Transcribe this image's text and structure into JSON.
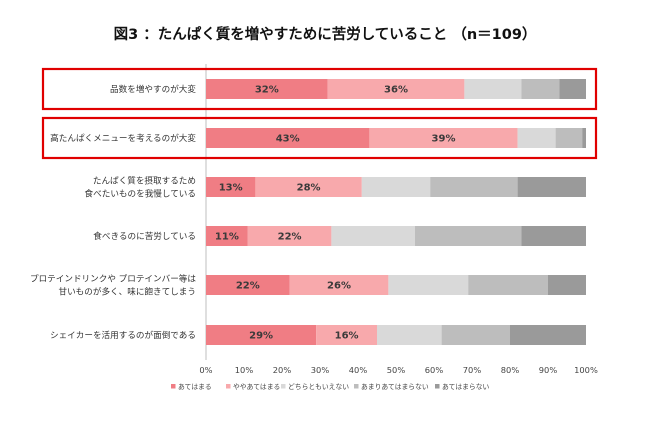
{
  "chart_data": {
    "type": "bar",
    "orientation": "horizontal-stacked-100",
    "title": "図3 ：たんぱく質を増やすために苦労していること （n＝109）",
    "categories": [
      [
        "品数を増やすのが大変"
      ],
      [
        "高たんぱくメニューを考えるのが大変"
      ],
      [
        "たんぱく質を摂取するため",
        "食べたいものを我慢している"
      ],
      [
        "食べきるのに苦労している"
      ],
      [
        "プロテインドリンクや プロテインバー等は",
        "甘いものが多く、味に飽きてしまう"
      ],
      [
        "シェイカーを活用するのが面倒である"
      ]
    ],
    "series": [
      {
        "name": "あてはまる",
        "color": "#f07d84",
        "values": [
          32,
          43,
          13,
          11,
          22,
          29
        ]
      },
      {
        "name": "ややあてはまる",
        "color": "#f8a9ac",
        "values": [
          36,
          39,
          28,
          22,
          26,
          16
        ]
      },
      {
        "name": "どちらともいえない",
        "color": "#d9d9d9",
        "values": [
          15,
          10,
          18,
          22,
          21,
          17
        ]
      },
      {
        "name": "あまりあてはまらない",
        "color": "#bdbdbd",
        "values": [
          10,
          7,
          23,
          28,
          21,
          18
        ]
      },
      {
        "name": "あてはまらない",
        "color": "#9a9a9a",
        "values": [
          7,
          1,
          18,
          17,
          10,
          20
        ]
      }
    ],
    "data_labels": {
      "series_shown": [
        0,
        1
      ],
      "format": "{v}%"
    },
    "xlim": [
      0,
      100
    ],
    "x_ticks": [
      "0%",
      "10%",
      "20%",
      "30%",
      "40%",
      "50%",
      "60%",
      "70%",
      "80%",
      "90%",
      "100%"
    ],
    "highlighted_categories": [
      0,
      1
    ],
    "highlight_color": "#e00000",
    "legend_position": "bottom",
    "grid": false
  }
}
